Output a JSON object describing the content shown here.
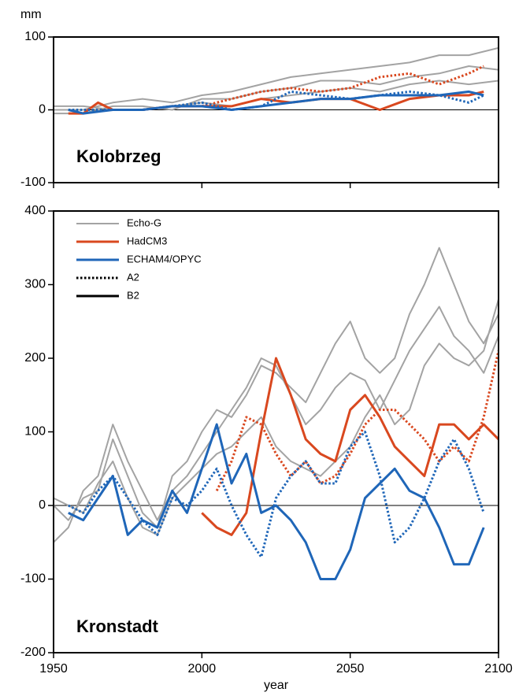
{
  "chart_data": [
    {
      "type": "line",
      "title": "Kolobrzeg",
      "ylabel": "mm",
      "xlim": [
        1950,
        2100
      ],
      "xticks": [
        1950,
        2000,
        2050,
        2100
      ],
      "xtick_labels": false,
      "ylim": [
        -100,
        100
      ],
      "yticks": [
        -100,
        0,
        100
      ],
      "hline": 0,
      "series": [
        {
          "name": "Echo-G",
          "color": "#a3a3a3",
          "dash": "solid",
          "x": [
            1950,
            1960,
            1970,
            1980,
            1990,
            2000,
            2010,
            2020,
            2030,
            2040,
            2050,
            2060,
            2070,
            2080,
            2090,
            2100
          ],
          "values": [
            0,
            0,
            10,
            15,
            10,
            20,
            25,
            35,
            45,
            50,
            55,
            60,
            65,
            75,
            75,
            85
          ]
        },
        {
          "name": "Echo-G",
          "color": "#a3a3a3",
          "dash": "solid",
          "x": [
            1950,
            1960,
            1970,
            1980,
            1990,
            2000,
            2010,
            2020,
            2030,
            2040,
            2050,
            2060,
            2070,
            2080,
            2090,
            2100
          ],
          "values": [
            -5,
            -5,
            5,
            5,
            0,
            15,
            15,
            25,
            30,
            40,
            40,
            35,
            45,
            50,
            60,
            55
          ]
        },
        {
          "name": "Echo-G",
          "color": "#a3a3a3",
          "dash": "solid",
          "x": [
            1950,
            1960,
            1970,
            1980,
            1990,
            2000,
            2010,
            2020,
            2030,
            2040,
            2050,
            2060,
            2070,
            2080,
            2090,
            2100
          ],
          "values": [
            5,
            5,
            0,
            0,
            5,
            10,
            5,
            15,
            20,
            25,
            30,
            25,
            35,
            40,
            35,
            40
          ]
        },
        {
          "name": "HadCM3",
          "color": "#d9481f",
          "dash": "dotted",
          "x": [
            2000,
            2010,
            2020,
            2030,
            2040,
            2050,
            2060,
            2070,
            2080,
            2090,
            2095
          ],
          "values": [
            5,
            15,
            25,
            30,
            25,
            30,
            45,
            50,
            35,
            50,
            60
          ]
        },
        {
          "name": "HadCM3",
          "color": "#d9481f",
          "dash": "solid",
          "x": [
            1955,
            1960,
            1965,
            1970,
            1980,
            1990,
            2000,
            2010,
            2020,
            2030,
            2040,
            2050,
            2060,
            2070,
            2080,
            2090,
            2095
          ],
          "values": [
            -5,
            -5,
            10,
            0,
            0,
            5,
            5,
            5,
            15,
            10,
            15,
            15,
            0,
            15,
            20,
            20,
            25
          ]
        },
        {
          "name": "ECHAM4/OPYC",
          "color": "#1f66b8",
          "dash": "dotted",
          "x": [
            1955,
            1960,
            1970,
            1980,
            1990,
            2000,
            2010,
            2020,
            2030,
            2040,
            2050,
            2060,
            2070,
            2080,
            2090,
            2095
          ],
          "values": [
            0,
            0,
            0,
            0,
            5,
            10,
            0,
            5,
            25,
            20,
            15,
            20,
            25,
            20,
            10,
            20
          ]
        },
        {
          "name": "ECHAM4/OPYC",
          "color": "#1f66b8",
          "dash": "solid",
          "x": [
            1955,
            1960,
            1970,
            1980,
            1990,
            2000,
            2010,
            2020,
            2030,
            2040,
            2050,
            2060,
            2070,
            2080,
            2090,
            2095
          ],
          "values": [
            0,
            -5,
            0,
            0,
            5,
            5,
            0,
            5,
            10,
            15,
            15,
            20,
            20,
            20,
            25,
            20
          ]
        }
      ]
    },
    {
      "type": "line",
      "title": "Kronstadt",
      "xlabel": "year",
      "xlim": [
        1950,
        2100
      ],
      "xticks": [
        1950,
        2000,
        2050,
        2100
      ],
      "xtick_labels": true,
      "ylim": [
        -200,
        400
      ],
      "yticks": [
        -200,
        -100,
        0,
        100,
        200,
        300,
        400
      ],
      "hline": 0,
      "legend": [
        {
          "label": "Echo-G",
          "color": "#a3a3a3",
          "dash": "solid"
        },
        {
          "label": "HadCM3",
          "color": "#d9481f",
          "dash": "solid"
        },
        {
          "label": "ECHAM4/OPYC",
          "color": "#1f66b8",
          "dash": "solid"
        },
        {
          "label": "A2",
          "color": "#000000",
          "dash": "dotted"
        },
        {
          "label": "B2",
          "color": "#000000",
          "dash": "solid"
        }
      ],
      "series": [
        {
          "name": "Echo-G",
          "color": "#a3a3a3",
          "dash": "solid",
          "x": [
            1950,
            1955,
            1960,
            1965,
            1970,
            1975,
            1980,
            1985,
            1990,
            1995,
            2000,
            2005,
            2010,
            2015,
            2020,
            2025,
            2030,
            2035,
            2040,
            2045,
            2050,
            2055,
            2060,
            2065,
            2070,
            2075,
            2080,
            2085,
            2090,
            2095,
            2100
          ],
          "values": [
            0,
            -20,
            10,
            20,
            90,
            40,
            -10,
            -30,
            40,
            60,
            100,
            130,
            120,
            150,
            190,
            180,
            160,
            140,
            180,
            220,
            250,
            200,
            180,
            200,
            260,
            300,
            350,
            300,
            250,
            220,
            260
          ]
        },
        {
          "name": "Echo-G",
          "color": "#a3a3a3",
          "dash": "solid",
          "x": [
            1950,
            1955,
            1960,
            1965,
            1970,
            1975,
            1980,
            1985,
            1990,
            1995,
            2000,
            2005,
            2010,
            2015,
            2020,
            2025,
            2030,
            2035,
            2040,
            2045,
            2050,
            2055,
            2060,
            2065,
            2070,
            2075,
            2080,
            2085,
            2090,
            2095,
            2100
          ],
          "values": [
            -50,
            -30,
            20,
            40,
            110,
            60,
            20,
            -20,
            20,
            40,
            70,
            100,
            130,
            160,
            200,
            190,
            150,
            110,
            130,
            160,
            180,
            170,
            130,
            170,
            210,
            240,
            270,
            230,
            210,
            180,
            230
          ]
        },
        {
          "name": "Echo-G",
          "color": "#a3a3a3",
          "dash": "solid",
          "x": [
            1950,
            1955,
            1960,
            1965,
            1970,
            1975,
            1980,
            1985,
            1990,
            1995,
            2000,
            2005,
            2010,
            2015,
            2020,
            2025,
            2030,
            2035,
            2040,
            2045,
            2050,
            2055,
            2060,
            2065,
            2070,
            2075,
            2080,
            2085,
            2090,
            2095,
            2100
          ],
          "values": [
            10,
            0,
            -10,
            30,
            60,
            10,
            -30,
            -40,
            10,
            30,
            50,
            70,
            80,
            100,
            120,
            80,
            60,
            50,
            40,
            60,
            80,
            120,
            150,
            110,
            130,
            190,
            220,
            200,
            190,
            210,
            280
          ]
        },
        {
          "name": "HadCM3",
          "color": "#d9481f",
          "dash": "dotted",
          "x": [
            2005,
            2010,
            2015,
            2020,
            2025,
            2030,
            2035,
            2040,
            2045,
            2050,
            2055,
            2060,
            2065,
            2070,
            2075,
            2080,
            2085,
            2090,
            2095,
            2100
          ],
          "values": [
            20,
            60,
            120,
            110,
            70,
            40,
            60,
            30,
            40,
            70,
            110,
            130,
            130,
            110,
            90,
            60,
            80,
            60,
            120,
            210
          ]
        },
        {
          "name": "HadCM3",
          "color": "#d9481f",
          "dash": "solid",
          "x": [
            2000,
            2005,
            2010,
            2015,
            2020,
            2025,
            2030,
            2035,
            2040,
            2045,
            2050,
            2055,
            2060,
            2065,
            2070,
            2075,
            2080,
            2085,
            2090,
            2095,
            2100
          ],
          "values": [
            -10,
            -30,
            -40,
            -10,
            100,
            200,
            150,
            90,
            70,
            60,
            130,
            150,
            120,
            80,
            60,
            40,
            110,
            110,
            90,
            110,
            90
          ]
        },
        {
          "name": "ECHAM4/OPYC",
          "color": "#1f66b8",
          "dash": "dotted",
          "x": [
            1955,
            1960,
            1965,
            1970,
            1975,
            1980,
            1985,
            1990,
            1995,
            2000,
            2005,
            2010,
            2015,
            2020,
            2025,
            2030,
            2035,
            2040,
            2045,
            2050,
            2055,
            2060,
            2065,
            2070,
            2075,
            2080,
            2085,
            2090,
            2095
          ],
          "values": [
            0,
            -10,
            20,
            40,
            10,
            -20,
            -40,
            10,
            0,
            20,
            50,
            0,
            -40,
            -70,
            10,
            40,
            60,
            30,
            30,
            80,
            100,
            40,
            -50,
            -30,
            10,
            60,
            90,
            50,
            -10
          ]
        },
        {
          "name": "ECHAM4/OPYC",
          "color": "#1f66b8",
          "dash": "solid",
          "x": [
            1955,
            1960,
            1965,
            1970,
            1975,
            1980,
            1985,
            1990,
            1995,
            2000,
            2005,
            2010,
            2015,
            2020,
            2025,
            2030,
            2035,
            2040,
            2045,
            2050,
            2055,
            2060,
            2065,
            2070,
            2075,
            2080,
            2085,
            2090,
            2095
          ],
          "values": [
            -10,
            -20,
            10,
            40,
            -40,
            -20,
            -30,
            20,
            -10,
            50,
            110,
            30,
            70,
            -10,
            0,
            -20,
            -50,
            -100,
            -100,
            -60,
            10,
            30,
            50,
            20,
            10,
            -30,
            -80,
            -80,
            -30
          ]
        }
      ]
    }
  ]
}
